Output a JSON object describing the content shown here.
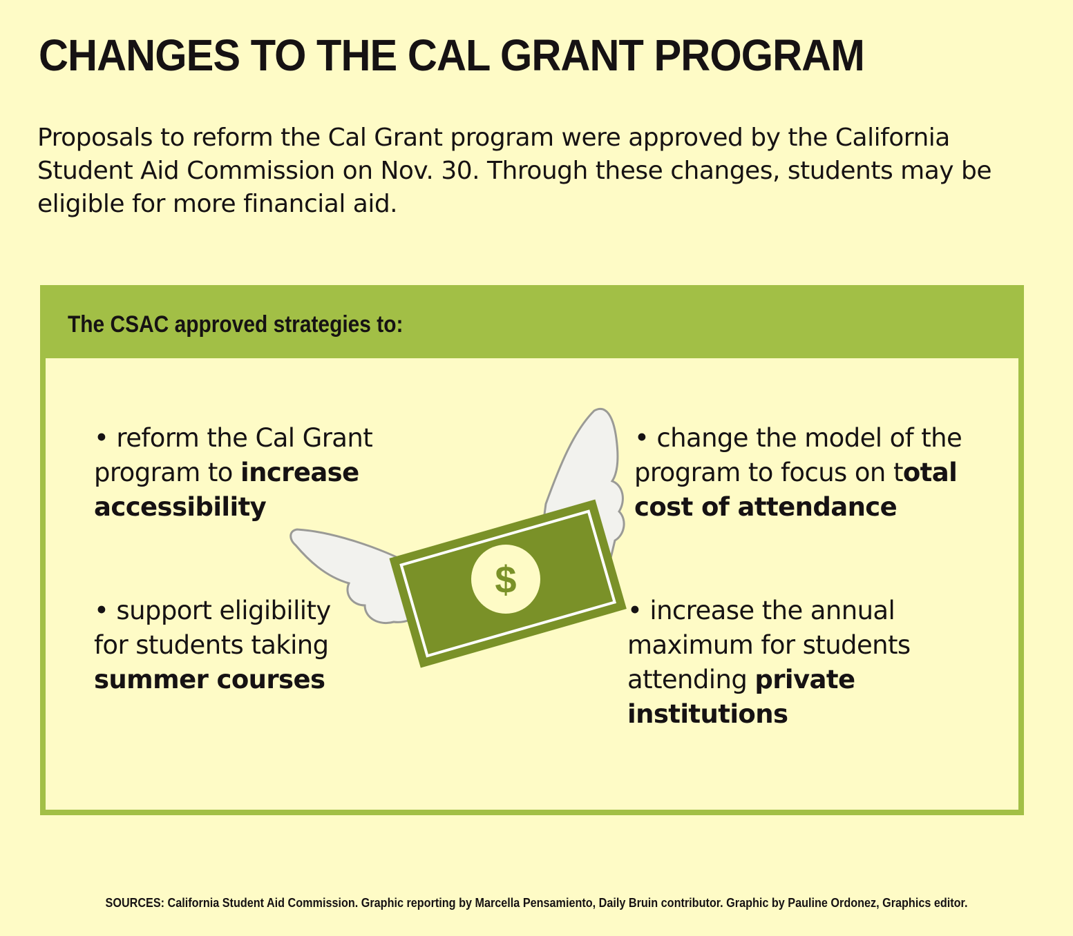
{
  "title": "CHANGES TO THE CAL GRANT PROGRAM",
  "intro": "Proposals to reform the Cal Grant program were approved by the California Student Aid Commission on Nov. 30. Through these changes, students may be eligible for more financial aid.",
  "panel": {
    "header": "The CSAC approved strategies to:",
    "strategies": [
      {
        "bullet": "•",
        "pre": "reform the Cal Grant program to ",
        "bold": "increase accessibility",
        "post": ""
      },
      {
        "bullet": "•",
        "pre": "change the model of the program to focus on t",
        "bold": "otal cost of attendance",
        "post": ""
      },
      {
        "bullet": "•",
        "pre": "support eligibility for students taking ",
        "bold": "summer courses",
        "post": ""
      },
      {
        "bullet": "•",
        "pre": "increase the annual maximum for students attending ",
        "bold": "private institutions",
        "post": ""
      }
    ]
  },
  "illustration": {
    "icon": "winged-dollar-bill-icon",
    "symbol": "$",
    "colors": {
      "bill": "#7a9128",
      "bill_border": "#ffffff",
      "coin": "#fefbc6",
      "symbol": "#7a9128",
      "wing_fill": "#f2f2ee",
      "wing_stroke": "#9a9a96"
    }
  },
  "colors": {
    "background": "#fefbc6",
    "accent": "#a2bf46",
    "text": "#161213"
  },
  "sources": "SOURCES: California Student Aid Commission. Graphic reporting by Marcella Pensamiento, Daily Bruin contributor. Graphic by Pauline Ordonez, Graphics editor."
}
